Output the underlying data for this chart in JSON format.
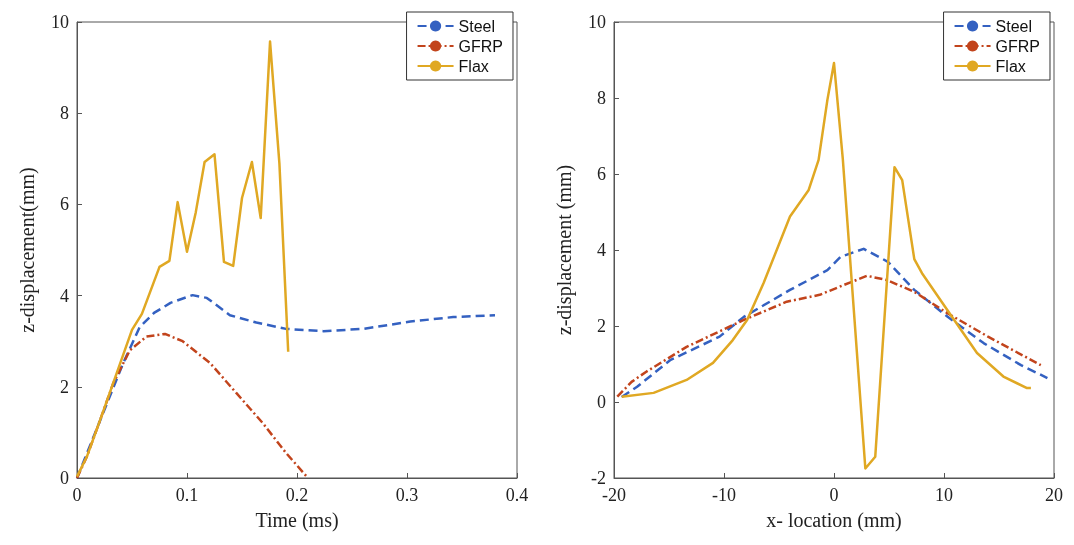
{
  "chart_data": [
    {
      "type": "line",
      "xlabel": "Time (ms)",
      "ylabel": "z-displacement(mm)",
      "xlim": [
        0,
        0.4
      ],
      "xticks": [
        0,
        0.1,
        0.2,
        0.3,
        0.4
      ],
      "ylim": [
        0,
        10
      ],
      "yticks": [
        0,
        2,
        4,
        6,
        8,
        10
      ],
      "grid": false,
      "legend": "top right",
      "marker": "none",
      "series": [
        {
          "name": "Steel",
          "color": "#3461c1",
          "line_style": "dashed",
          "x": [
            0,
            0.042,
            0.057,
            0.07,
            0.085,
            0.105,
            0.118,
            0.139,
            0.163,
            0.19,
            0.224,
            0.26,
            0.303,
            0.342,
            0.38
          ],
          "values": [
            0,
            2.52,
            3.31,
            3.62,
            3.84,
            4.01,
            3.95,
            3.57,
            3.41,
            3.27,
            3.22,
            3.27,
            3.43,
            3.53,
            3.57
          ]
        },
        {
          "name": "GFRP",
          "color": "#c2441c",
          "line_style": "dashdot",
          "x": [
            0,
            0.009,
            0.021,
            0.033,
            0.048,
            0.063,
            0.08,
            0.096,
            0.121,
            0.145,
            0.169,
            0.19,
            0.21
          ],
          "values": [
            0,
            0.47,
            1.27,
            2.08,
            2.8,
            3.1,
            3.16,
            3.0,
            2.52,
            1.86,
            1.2,
            0.55,
            0
          ]
        },
        {
          "name": "Flax",
          "color": "#e0a823",
          "line_style": "solid",
          "x": [
            0,
            0.009,
            0.021,
            0.05,
            0.059,
            0.066,
            0.075,
            0.084,
            0.0915,
            0.1,
            0.108,
            0.116,
            0.125,
            0.1336,
            0.142,
            0.15,
            0.159,
            0.167,
            0.1755,
            0.184,
            0.192
          ],
          "values": [
            0.03,
            0.47,
            1.27,
            3.25,
            3.6,
            4.05,
            4.63,
            4.76,
            6.05,
            4.96,
            5.83,
            6.93,
            7.1,
            4.74,
            4.65,
            6.14,
            6.93,
            5.7,
            9.57,
            6.9,
            2.77
          ]
        }
      ]
    },
    {
      "type": "line",
      "xlabel": "x- location (mm)",
      "ylabel": "z-displacement (mm)",
      "xlim": [
        -20,
        20
      ],
      "xticks": [
        -20,
        -10,
        0,
        10,
        20
      ],
      "ylim": [
        -2,
        10
      ],
      "yticks": [
        -2,
        0,
        2,
        4,
        6,
        8,
        10
      ],
      "grid": false,
      "legend": "top right",
      "marker": "none",
      "series": [
        {
          "name": "Steel",
          "color": "#3461c1",
          "line_style": "dashed",
          "x": [
            -19.3,
            -17.9,
            -14.9,
            -10.4,
            -8.2,
            -4,
            -0.6,
            0.6,
            2.7,
            4.9,
            7.3,
            10.3,
            13.6,
            17,
            19.4
          ],
          "values": [
            0.13,
            0.4,
            1.1,
            1.72,
            2.24,
            2.95,
            3.47,
            3.82,
            4.03,
            3.69,
            2.95,
            2.25,
            1.55,
            0.97,
            0.63
          ]
        },
        {
          "name": "GFRP",
          "color": "#c2441c",
          "line_style": "dashdot",
          "x": [
            -19.7,
            -18.4,
            -17.1,
            -13.4,
            -8.2,
            -4.3,
            -1.3,
            0.9,
            3,
            4.8,
            7.3,
            10.3,
            14,
            18.8
          ],
          "values": [
            0.14,
            0.53,
            0.79,
            1.45,
            2.16,
            2.64,
            2.82,
            3.08,
            3.32,
            3.21,
            2.9,
            2.34,
            1.72,
            0.97
          ]
        },
        {
          "name": "Flax",
          "color": "#e0a823",
          "line_style": "solid",
          "x": [
            -19.3,
            -16.4,
            -13.4,
            -11,
            -9.2,
            -7.9,
            -6.4,
            -4,
            -2.3,
            -1.4,
            -0.6,
            0,
            0.8,
            2.85,
            3.75,
            5.5,
            6.2,
            7.3,
            8,
            10.3,
            13,
            15.4,
            17.5,
            17.9
          ],
          "values": [
            0.14,
            0.24,
            0.58,
            1.03,
            1.63,
            2.16,
            3.13,
            4.88,
            5.58,
            6.37,
            7.95,
            8.92,
            6.4,
            -1.75,
            -1.44,
            6.18,
            5.84,
            3.76,
            3.39,
            2.42,
            1.29,
            0.67,
            0.37,
            0.37
          ]
        }
      ]
    }
  ]
}
